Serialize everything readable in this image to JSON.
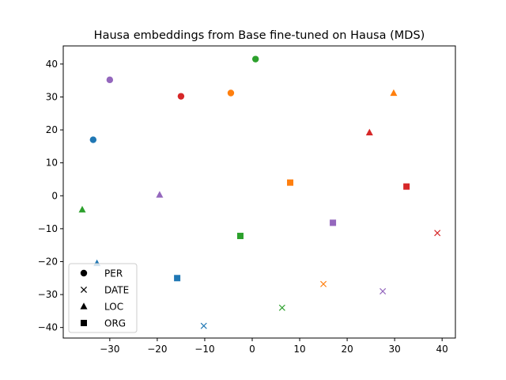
{
  "chart_data": {
    "type": "scatter",
    "title": "Hausa embeddings from Base fine-tuned on Hausa (MDS)",
    "xlabel": "",
    "ylabel": "",
    "xlim": [
      -39.8,
      42.8
    ],
    "ylim": [
      -43.2,
      45.5
    ],
    "xticks": [
      -30,
      -20,
      -10,
      0,
      10,
      20,
      30,
      40
    ],
    "yticks": [
      -40,
      -30,
      -20,
      -10,
      0,
      10,
      20,
      30,
      40
    ],
    "xtick_labels": [
      "−30",
      "−20",
      "−10",
      "0",
      "10",
      "20",
      "30",
      "40"
    ],
    "ytick_labels": [
      "−40",
      "−30",
      "−20",
      "−10",
      "0",
      "10",
      "20",
      "30",
      "40"
    ],
    "grid": false,
    "legend_placement": "lower-left",
    "legend": [
      {
        "label": "PER",
        "marker": "circle"
      },
      {
        "label": "DATE",
        "marker": "x"
      },
      {
        "label": "LOC",
        "marker": "triangle"
      },
      {
        "label": "ORG",
        "marker": "square"
      }
    ],
    "points": [
      {
        "x": -33.5,
        "y": 17.0,
        "marker": "circle",
        "color": "#1f77b4"
      },
      {
        "x": -30.0,
        "y": 35.2,
        "marker": "circle",
        "color": "#9467bd"
      },
      {
        "x": -15.0,
        "y": 30.2,
        "marker": "circle",
        "color": "#d62728"
      },
      {
        "x": -4.5,
        "y": 31.2,
        "marker": "circle",
        "color": "#ff7f0e"
      },
      {
        "x": 0.7,
        "y": 41.5,
        "marker": "circle",
        "color": "#2ca02c"
      },
      {
        "x": -10.2,
        "y": -39.5,
        "marker": "x",
        "color": "#1f77b4"
      },
      {
        "x": 6.3,
        "y": -34.0,
        "marker": "x",
        "color": "#2ca02c"
      },
      {
        "x": 15.0,
        "y": -26.8,
        "marker": "x",
        "color": "#ff7f0e"
      },
      {
        "x": 27.5,
        "y": -29.0,
        "marker": "x",
        "color": "#9467bd"
      },
      {
        "x": 39.0,
        "y": -11.3,
        "marker": "x",
        "color": "#d62728"
      },
      {
        "x": -35.8,
        "y": -4.2,
        "marker": "triangle",
        "color": "#2ca02c"
      },
      {
        "x": -32.7,
        "y": -20.5,
        "marker": "triangle",
        "color": "#1f77b4"
      },
      {
        "x": -19.5,
        "y": 0.3,
        "marker": "triangle",
        "color": "#9467bd"
      },
      {
        "x": 24.7,
        "y": 19.2,
        "marker": "triangle",
        "color": "#d62728"
      },
      {
        "x": 29.8,
        "y": 31.2,
        "marker": "triangle",
        "color": "#ff7f0e"
      },
      {
        "x": -15.8,
        "y": -25.0,
        "marker": "square",
        "color": "#1f77b4"
      },
      {
        "x": -2.5,
        "y": -12.2,
        "marker": "square",
        "color": "#2ca02c"
      },
      {
        "x": 8.0,
        "y": 4.0,
        "marker": "square",
        "color": "#ff7f0e"
      },
      {
        "x": 17.0,
        "y": -8.2,
        "marker": "square",
        "color": "#9467bd"
      },
      {
        "x": 32.5,
        "y": 2.8,
        "marker": "square",
        "color": "#d62728"
      }
    ]
  }
}
